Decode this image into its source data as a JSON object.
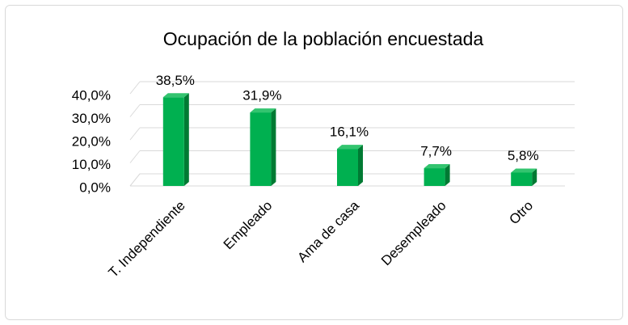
{
  "chart_data": {
    "type": "bar3d",
    "title": "Ocupación de la población encuestada",
    "categories": [
      "T. Independiente",
      "Empleado",
      "Ama de casa",
      "Desempleado",
      "Otro"
    ],
    "values": [
      38.5,
      31.9,
      16.1,
      7.7,
      5.8
    ],
    "value_labels": [
      "38,5%",
      "31,9%",
      "16,1%",
      "7,7%",
      "5,8%"
    ],
    "color": "#00b050",
    "ylim": [
      0,
      40
    ],
    "yticks": [
      {
        "value": 0,
        "label": "0,0%"
      },
      {
        "value": 10,
        "label": "10,0%"
      },
      {
        "value": 20,
        "label": "20,0%"
      },
      {
        "value": 30,
        "label": "30,0%"
      },
      {
        "value": 40,
        "label": "40,0%"
      }
    ],
    "grid": true
  }
}
